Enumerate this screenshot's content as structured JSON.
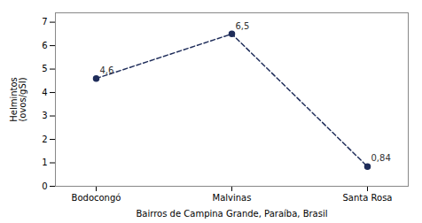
{
  "chart_data": {
    "type": "line",
    "categories": [
      "Bodocongó",
      "Malvinas",
      "Santa Rosa"
    ],
    "values": [
      4.6,
      6.5,
      0.84
    ],
    "value_labels": [
      "4,6",
      "6,5",
      "0,84"
    ],
    "data_labels": true,
    "xlabel": "Bairros de Campina Grande, Paraíba, Brasil",
    "ylabel": "Helmintos\n(ovos/gSI)",
    "ylim": [
      0,
      7.4
    ],
    "yticks": [
      0,
      1,
      2,
      3,
      4,
      5,
      6,
      7
    ],
    "color": "#1f2d5a",
    "marker": "circle",
    "line_style": "dashed",
    "grid": false
  }
}
